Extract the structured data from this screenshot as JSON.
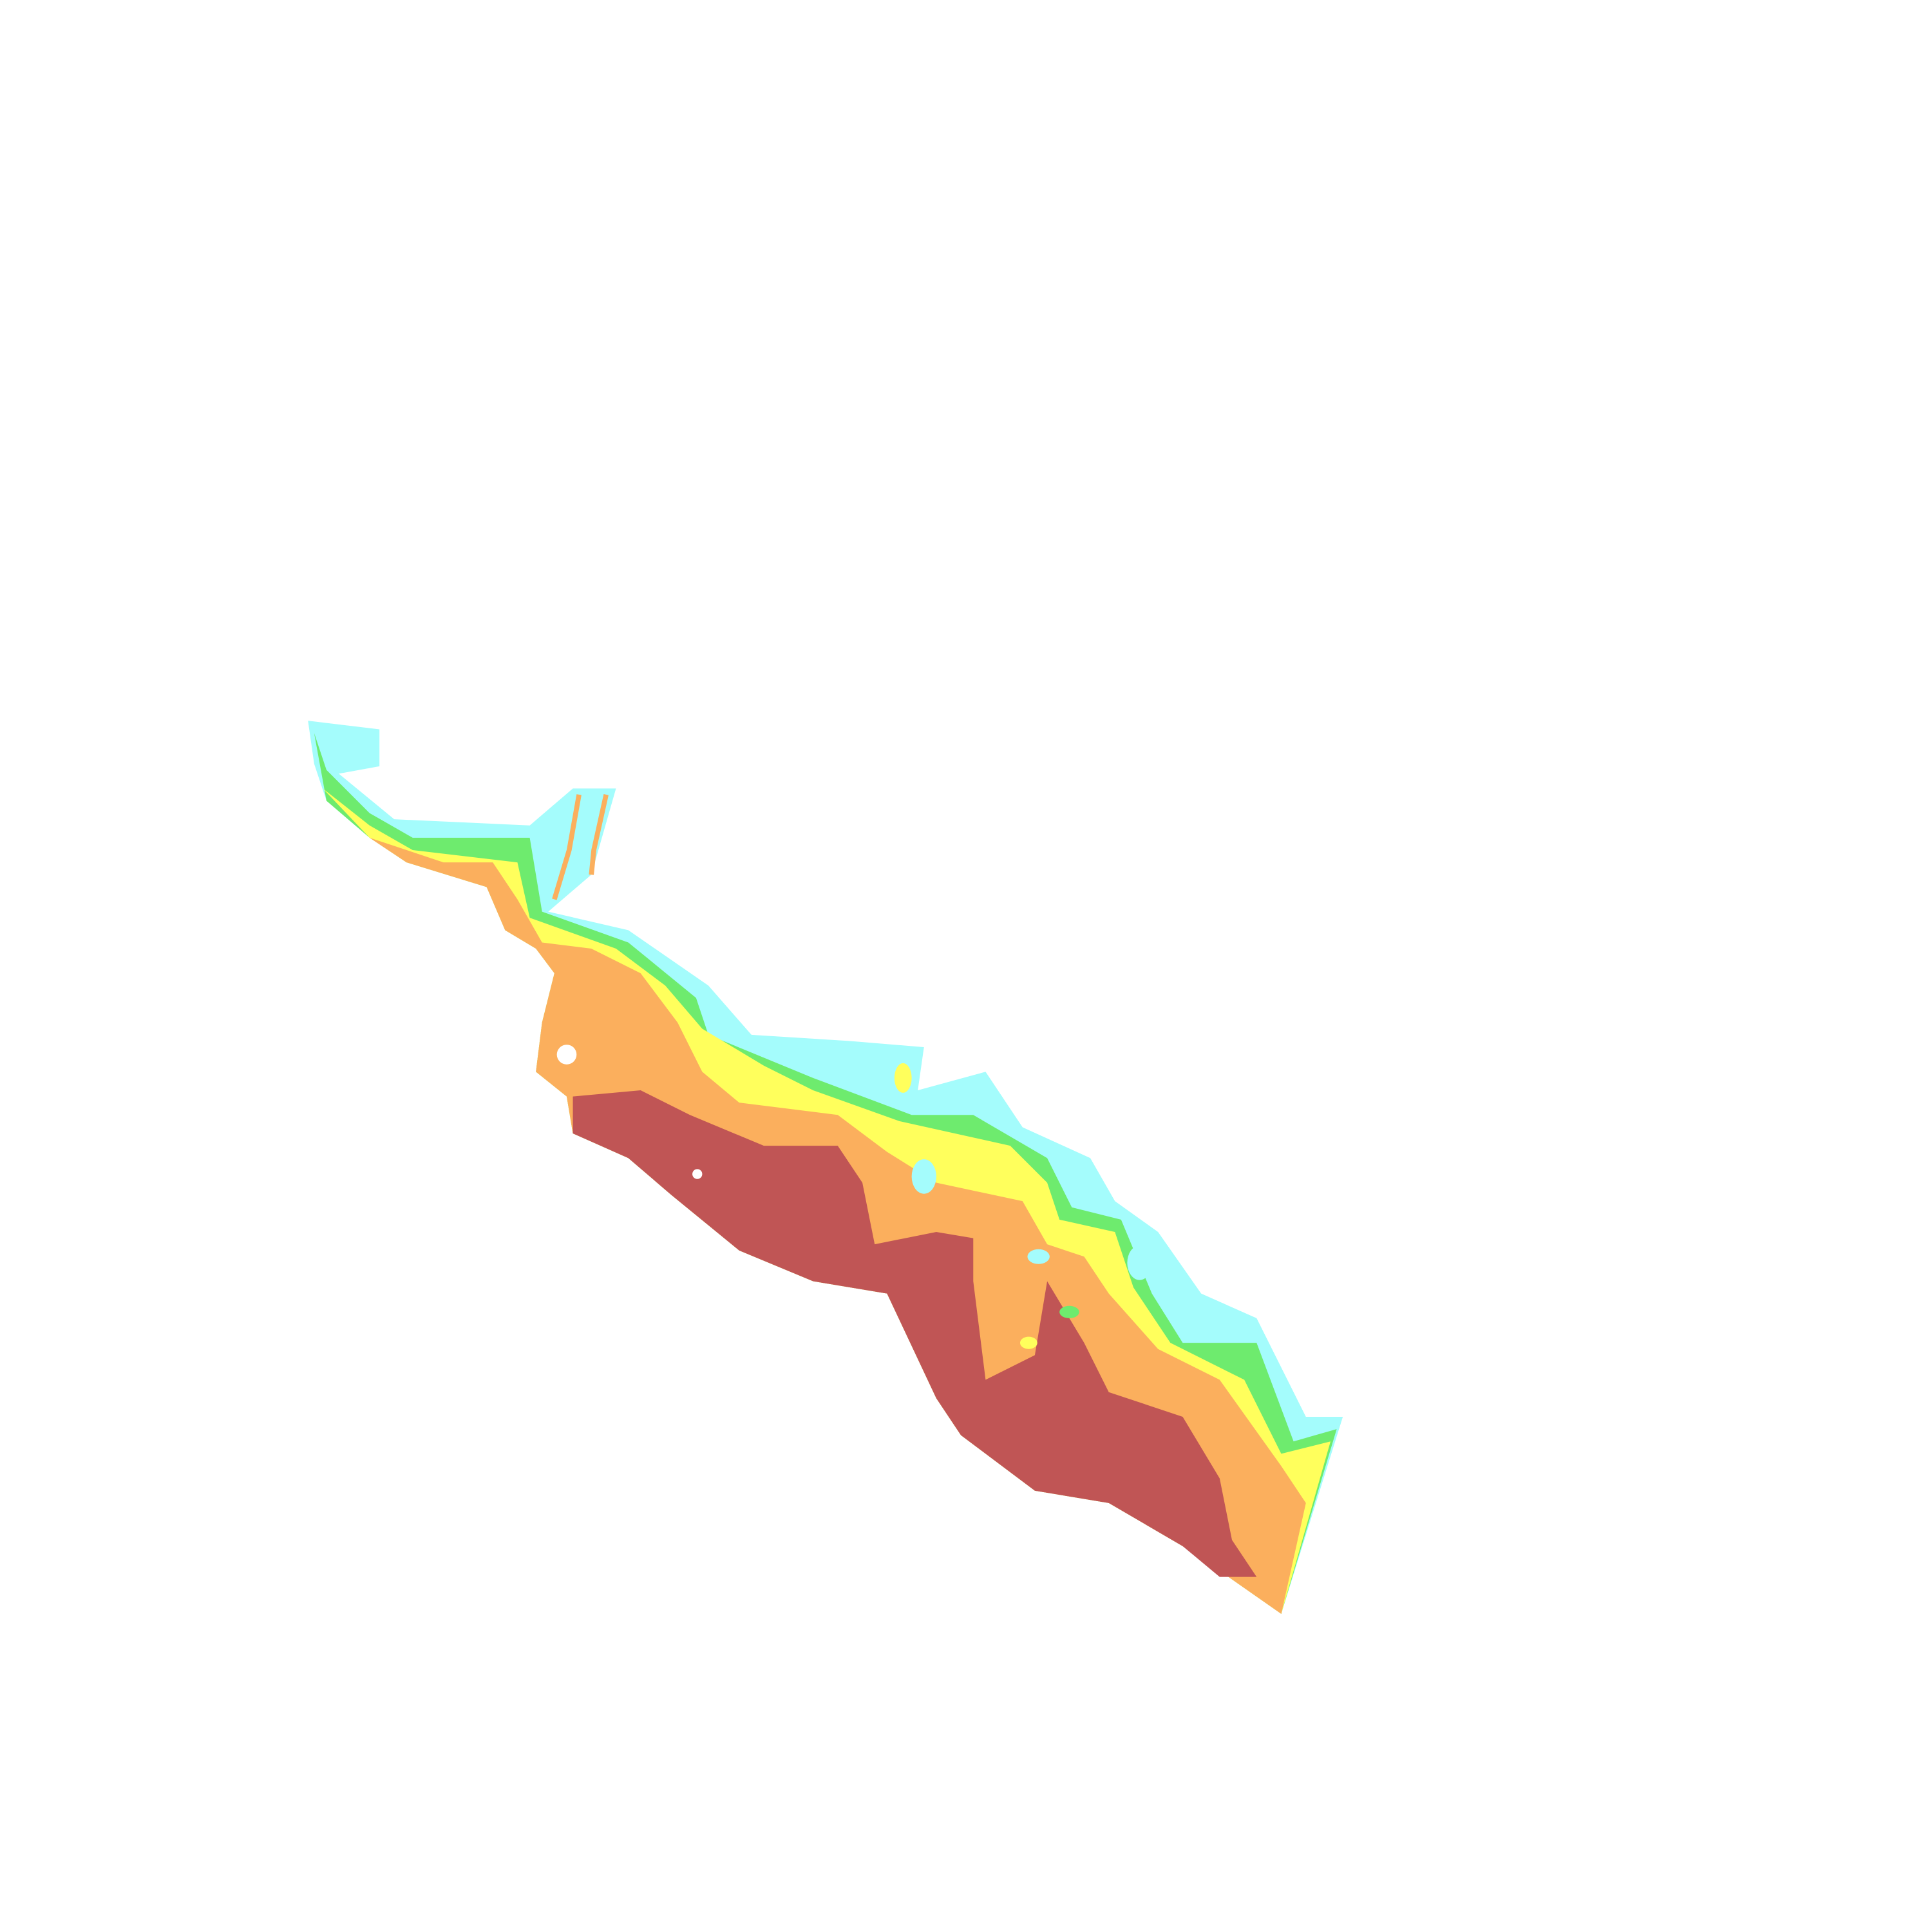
{
  "map": {
    "zones": [
      {
        "id": "zone-1",
        "color": "#A4FCFC"
      },
      {
        "id": "zone-2",
        "color": "#6EEB6E"
      },
      {
        "id": "zone-3",
        "color": "#FFFF5C"
      },
      {
        "id": "zone-4",
        "color": "#FBAF5D"
      },
      {
        "id": "zone-5",
        "color": "#C05555"
      }
    ],
    "background": "#FFFFFF"
  }
}
